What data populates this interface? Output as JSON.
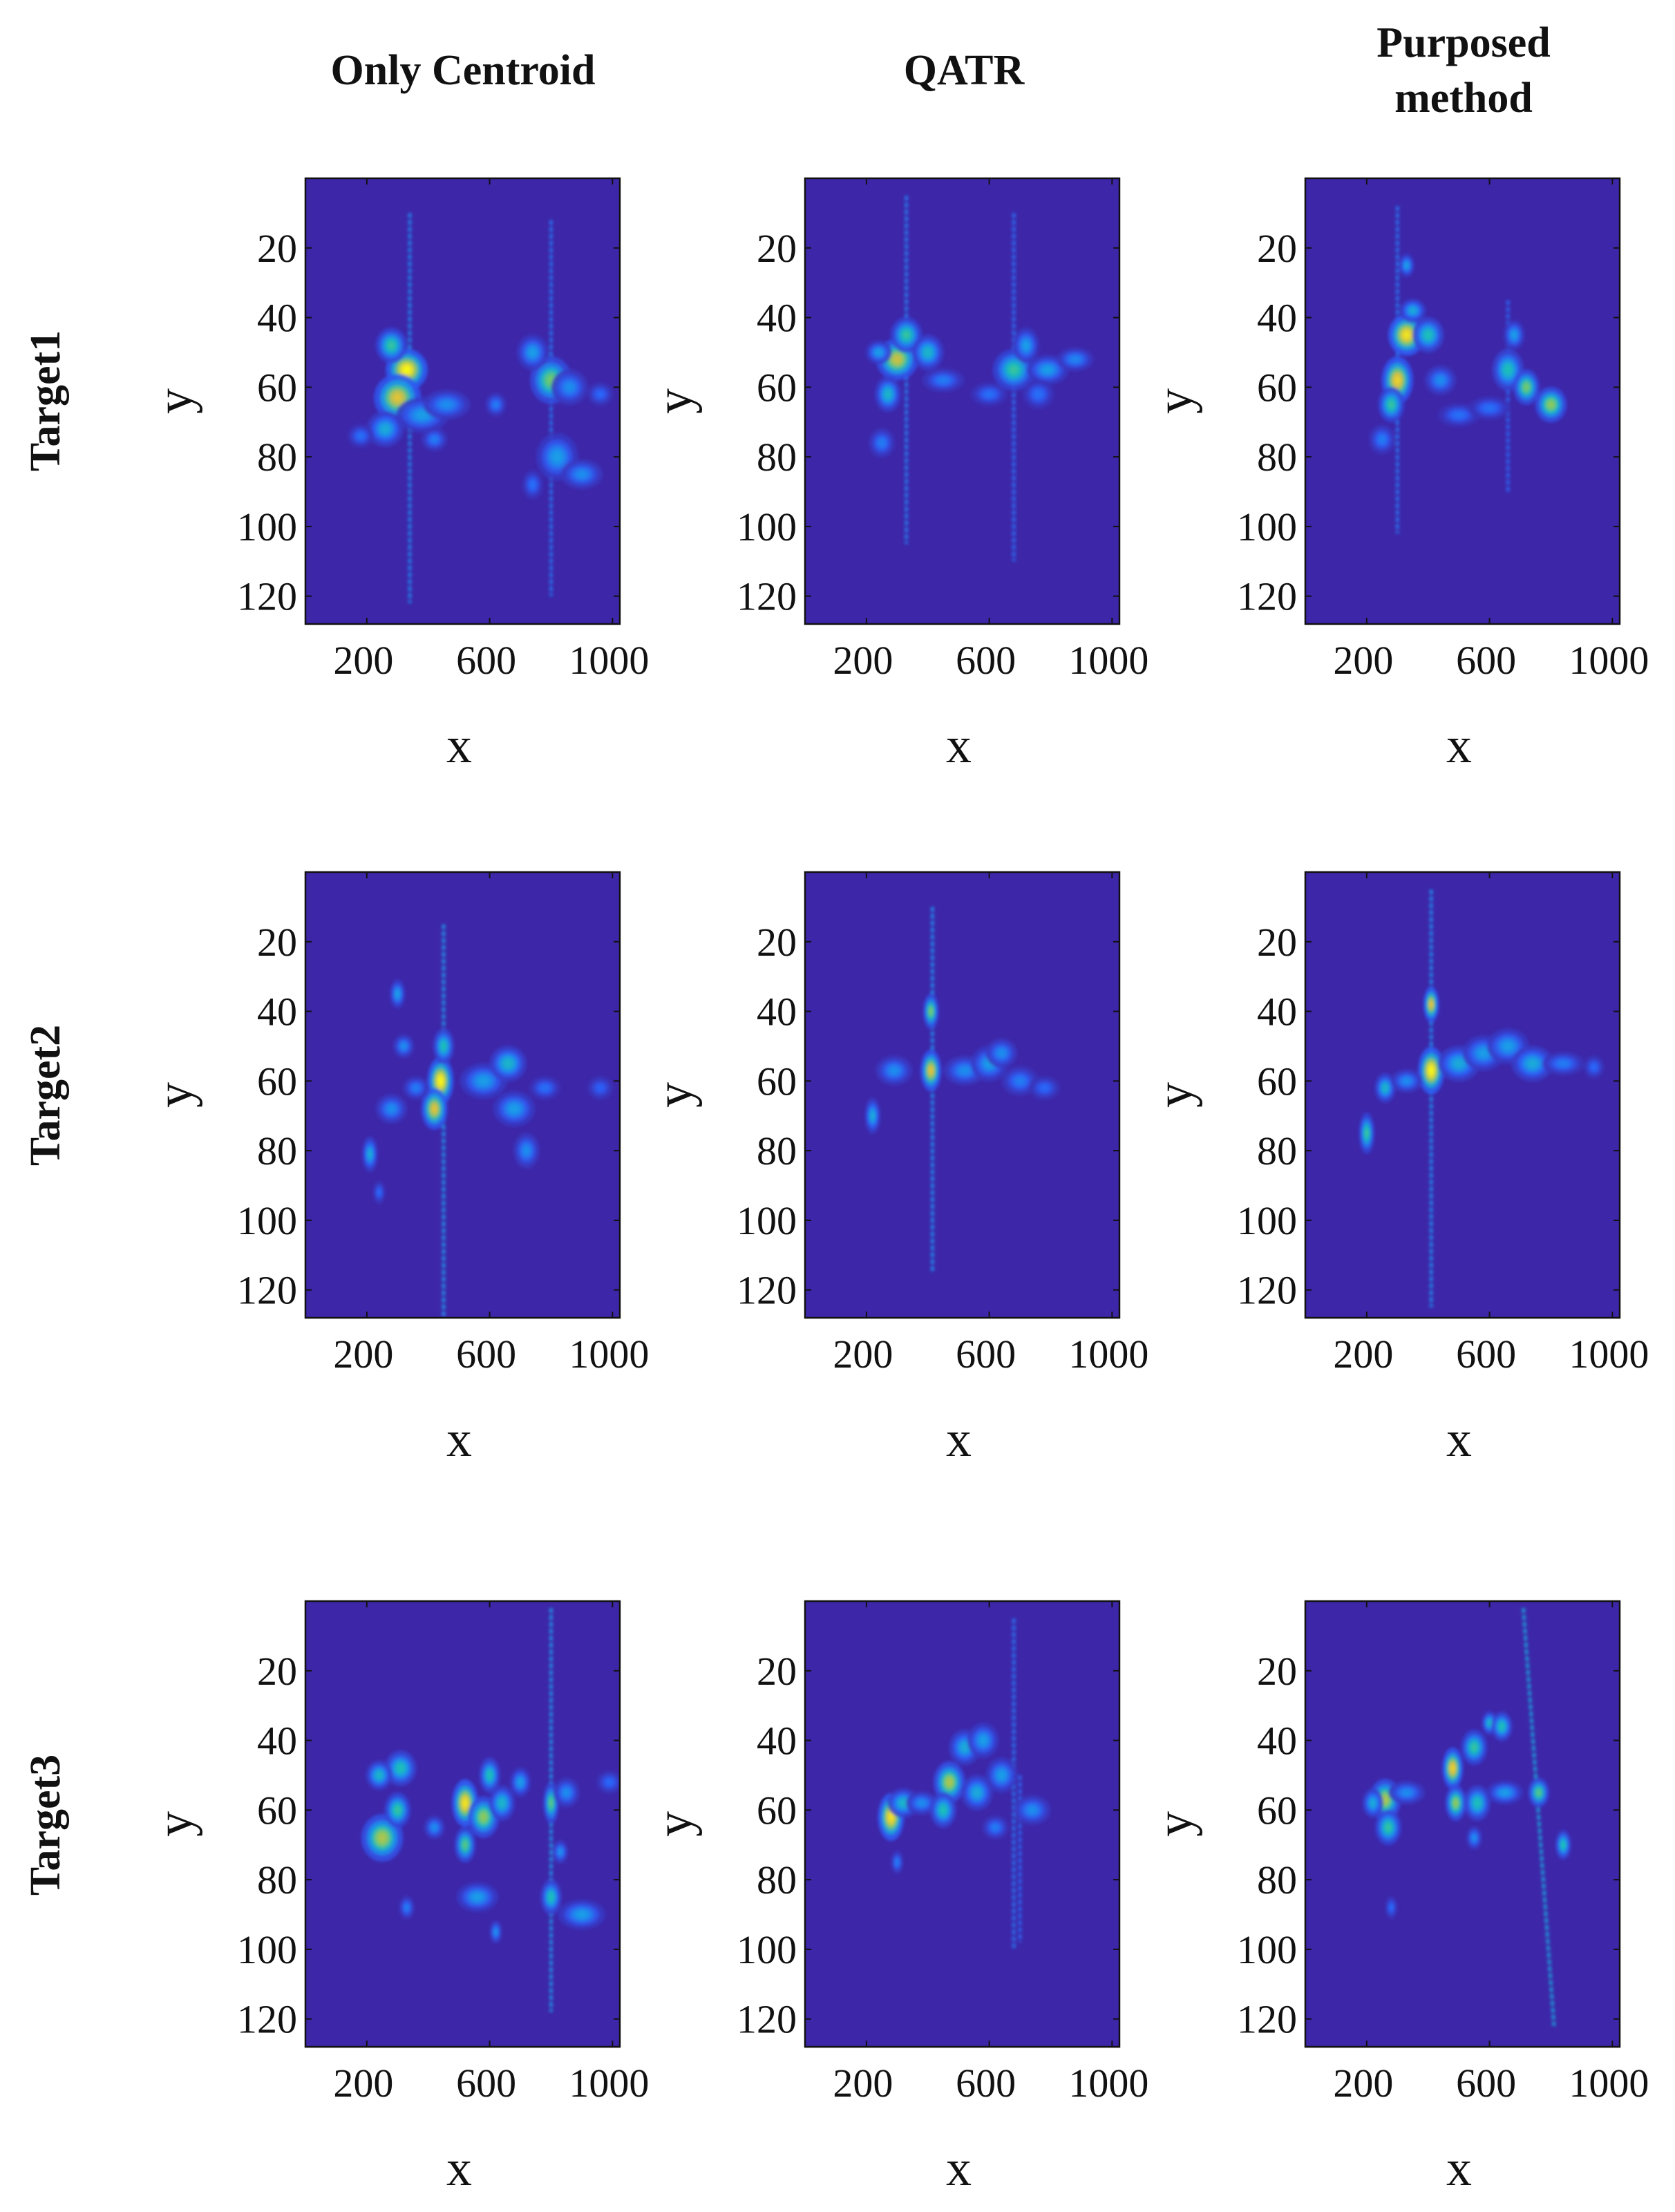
{
  "figure": {
    "column_titles": [
      [
        "Only Centroid"
      ],
      [
        "QATR"
      ],
      [
        "Purposed",
        "method"
      ]
    ],
    "row_titles": [
      "Target1",
      "Target2",
      "Target3"
    ],
    "colormap": {
      "background": "#3D26A8",
      "stops": [
        "#3D26A8",
        "#2E5DF8",
        "#1A9BEA",
        "#1CC0B5",
        "#7FCB60",
        "#E3BD3A",
        "#F9FB15"
      ]
    },
    "frame_color": "#111111"
  },
  "chart_data": [
    {
      "type": "heatmap",
      "target": "Target1",
      "method": "Only Centroid",
      "xlabel": "x",
      "ylabel": "y",
      "xticks": [
        200,
        600,
        1000
      ],
      "yticks": [
        20,
        40,
        60,
        80,
        100,
        120
      ],
      "xlim": [
        0,
        1024
      ],
      "ylim": [
        0,
        128
      ],
      "lines": [
        {
          "x": 340,
          "y0": 10,
          "y1": 122,
          "i": 0.18
        },
        {
          "x": 800,
          "y0": 12,
          "y1": 120,
          "i": 0.14
        }
      ],
      "blobs": [
        [
          330,
          55,
          40,
          3.5,
          1.0
        ],
        [
          300,
          63,
          45,
          4,
          0.85
        ],
        [
          280,
          48,
          30,
          3,
          0.55
        ],
        [
          260,
          72,
          35,
          3,
          0.4
        ],
        [
          380,
          68,
          50,
          3,
          0.35
        ],
        [
          460,
          65,
          45,
          2.5,
          0.3
        ],
        [
          620,
          65,
          20,
          2,
          0.25
        ],
        [
          180,
          74,
          25,
          2,
          0.22
        ],
        [
          420,
          75,
          25,
          2,
          0.25
        ],
        [
          800,
          58,
          40,
          4,
          0.65
        ],
        [
          740,
          50,
          30,
          3,
          0.35
        ],
        [
          860,
          60,
          35,
          3,
          0.3
        ],
        [
          820,
          80,
          40,
          4,
          0.35
        ],
        [
          900,
          85,
          40,
          2.5,
          0.3
        ],
        [
          740,
          88,
          20,
          2.5,
          0.22
        ],
        [
          960,
          62,
          25,
          2,
          0.2
        ]
      ]
    },
    {
      "type": "heatmap",
      "target": "Target1",
      "method": "QATR",
      "xlabel": "x",
      "ylabel": "y",
      "xticks": [
        200,
        600,
        1000
      ],
      "yticks": [
        20,
        40,
        60,
        80,
        100,
        120
      ],
      "xlim": [
        0,
        1024
      ],
      "ylim": [
        0,
        128
      ],
      "lines": [
        {
          "x": 330,
          "y0": 5,
          "y1": 105,
          "i": 0.16
        },
        {
          "x": 680,
          "y0": 10,
          "y1": 110,
          "i": 0.12
        }
      ],
      "blobs": [
        [
          300,
          52,
          40,
          3.5,
          0.8
        ],
        [
          330,
          45,
          30,
          3,
          0.55
        ],
        [
          270,
          62,
          25,
          3,
          0.45
        ],
        [
          400,
          50,
          30,
          3,
          0.45
        ],
        [
          240,
          50,
          25,
          2,
          0.35
        ],
        [
          450,
          58,
          40,
          2,
          0.25
        ],
        [
          600,
          62,
          35,
          2,
          0.22
        ],
        [
          250,
          76,
          25,
          2.5,
          0.25
        ],
        [
          680,
          55,
          40,
          3.5,
          0.55
        ],
        [
          720,
          48,
          25,
          3,
          0.35
        ],
        [
          790,
          55,
          40,
          2.5,
          0.35
        ],
        [
          880,
          52,
          35,
          2,
          0.28
        ],
        [
          760,
          62,
          30,
          2.5,
          0.22
        ]
      ]
    },
    {
      "type": "heatmap",
      "target": "Target1",
      "method": "Purposed method",
      "xlabel": "x",
      "ylabel": "y",
      "xticks": [
        200,
        600,
        1000
      ],
      "yticks": [
        20,
        40,
        60,
        80,
        100,
        120
      ],
      "xlim": [
        0,
        1024
      ],
      "ylim": [
        0,
        128
      ],
      "lines": [
        {
          "x": 300,
          "y0": 8,
          "y1": 102,
          "i": 0.14
        },
        {
          "x": 660,
          "y0": 35,
          "y1": 90,
          "i": 0.1
        }
      ],
      "blobs": [
        [
          330,
          45,
          35,
          3.5,
          0.95
        ],
        [
          300,
          58,
          30,
          4,
          0.9
        ],
        [
          280,
          65,
          25,
          3,
          0.55
        ],
        [
          350,
          38,
          25,
          2,
          0.4
        ],
        [
          330,
          25,
          15,
          2,
          0.35
        ],
        [
          400,
          45,
          30,
          3,
          0.5
        ],
        [
          440,
          58,
          30,
          2.5,
          0.3
        ],
        [
          500,
          68,
          40,
          2,
          0.22
        ],
        [
          250,
          75,
          25,
          2.5,
          0.25
        ],
        [
          660,
          55,
          30,
          3.5,
          0.5
        ],
        [
          720,
          60,
          25,
          3,
          0.65
        ],
        [
          800,
          65,
          30,
          3,
          0.7
        ],
        [
          680,
          45,
          20,
          2.5,
          0.35
        ],
        [
          600,
          66,
          40,
          2,
          0.22
        ]
      ]
    },
    {
      "type": "heatmap",
      "target": "Target2",
      "method": "Only Centroid",
      "xlabel": "x",
      "ylabel": "y",
      "xticks": [
        200,
        600,
        1000
      ],
      "yticks": [
        20,
        40,
        60,
        80,
        100,
        120
      ],
      "xlim": [
        0,
        1024
      ],
      "ylim": [
        0,
        128
      ],
      "lines": [
        {
          "x": 450,
          "y0": 15,
          "y1": 128,
          "i": 0.22
        }
      ],
      "blobs": [
        [
          440,
          60,
          25,
          4,
          1.0
        ],
        [
          420,
          68,
          25,
          3.5,
          0.85
        ],
        [
          450,
          50,
          20,
          3,
          0.5
        ],
        [
          300,
          35,
          15,
          2.5,
          0.35
        ],
        [
          320,
          50,
          20,
          2,
          0.3
        ],
        [
          280,
          68,
          30,
          2.5,
          0.3
        ],
        [
          210,
          81,
          15,
          3,
          0.4
        ],
        [
          580,
          60,
          45,
          3,
          0.35
        ],
        [
          660,
          55,
          35,
          3,
          0.45
        ],
        [
          680,
          68,
          40,
          3,
          0.35
        ],
        [
          720,
          80,
          25,
          3,
          0.3
        ],
        [
          780,
          62,
          30,
          2,
          0.22
        ],
        [
          360,
          62,
          25,
          2,
          0.25
        ],
        [
          240,
          92,
          12,
          2,
          0.2
        ],
        [
          960,
          62,
          25,
          2,
          0.18
        ]
      ]
    },
    {
      "type": "heatmap",
      "target": "Target2",
      "method": "QATR",
      "xlabel": "x",
      "ylabel": "y",
      "xticks": [
        200,
        600,
        1000
      ],
      "yticks": [
        20,
        40,
        60,
        80,
        100,
        120
      ],
      "xlim": [
        0,
        1024
      ],
      "ylim": [
        0,
        128
      ],
      "lines": [
        {
          "x": 415,
          "y0": 10,
          "y1": 115,
          "i": 0.2
        }
      ],
      "blobs": [
        [
          410,
          57,
          20,
          3.5,
          0.85
        ],
        [
          410,
          40,
          15,
          3,
          0.65
        ],
        [
          220,
          70,
          15,
          3,
          0.4
        ],
        [
          290,
          57,
          35,
          2.5,
          0.3
        ],
        [
          520,
          57,
          40,
          2.5,
          0.3
        ],
        [
          600,
          55,
          35,
          3,
          0.35
        ],
        [
          640,
          52,
          30,
          2.5,
          0.3
        ],
        [
          700,
          60,
          35,
          2.5,
          0.25
        ],
        [
          780,
          62,
          30,
          2,
          0.2
        ]
      ]
    },
    {
      "type": "heatmap",
      "target": "Target2",
      "method": "Purposed method",
      "xlabel": "x",
      "ylabel": "y",
      "xticks": [
        200,
        600,
        1000
      ],
      "yticks": [
        20,
        40,
        60,
        80,
        100,
        120
      ],
      "xlim": [
        0,
        1024
      ],
      "ylim": [
        0,
        128
      ],
      "lines": [
        {
          "x": 410,
          "y0": 5,
          "y1": 125,
          "i": 0.2
        }
      ],
      "blobs": [
        [
          410,
          57,
          25,
          4,
          1.0
        ],
        [
          410,
          38,
          15,
          3,
          0.85
        ],
        [
          200,
          75,
          15,
          3.5,
          0.55
        ],
        [
          260,
          62,
          20,
          2.5,
          0.45
        ],
        [
          330,
          60,
          30,
          2,
          0.3
        ],
        [
          500,
          55,
          40,
          3,
          0.4
        ],
        [
          580,
          52,
          40,
          3,
          0.35
        ],
        [
          660,
          50,
          40,
          3,
          0.35
        ],
        [
          740,
          55,
          40,
          3,
          0.4
        ],
        [
          840,
          55,
          40,
          2,
          0.25
        ],
        [
          940,
          56,
          20,
          2,
          0.2
        ]
      ]
    },
    {
      "type": "heatmap",
      "target": "Target3",
      "method": "Only Centroid",
      "xlabel": "x",
      "ylabel": "y",
      "xticks": [
        200,
        600,
        1000
      ],
      "yticks": [
        20,
        40,
        60,
        80,
        100,
        120
      ],
      "xlim": [
        0,
        1024
      ],
      "ylim": [
        0,
        128
      ],
      "lines": [
        {
          "x": 800,
          "y0": 2,
          "y1": 118,
          "i": 0.22
        }
      ],
      "blobs": [
        [
          250,
          68,
          40,
          4,
          0.75
        ],
        [
          300,
          60,
          25,
          3,
          0.55
        ],
        [
          310,
          48,
          30,
          3,
          0.5
        ],
        [
          240,
          50,
          25,
          2.5,
          0.45
        ],
        [
          420,
          65,
          20,
          2,
          0.3
        ],
        [
          520,
          58,
          25,
          4,
          0.95
        ],
        [
          520,
          70,
          20,
          3,
          0.6
        ],
        [
          580,
          62,
          30,
          3.5,
          0.7
        ],
        [
          600,
          50,
          20,
          3,
          0.5
        ],
        [
          640,
          58,
          25,
          3,
          0.45
        ],
        [
          560,
          85,
          40,
          2.5,
          0.35
        ],
        [
          620,
          95,
          12,
          2,
          0.3
        ],
        [
          700,
          52,
          20,
          2.5,
          0.35
        ],
        [
          800,
          58,
          15,
          3.5,
          0.6
        ],
        [
          800,
          85,
          20,
          3,
          0.5
        ],
        [
          850,
          55,
          25,
          2.5,
          0.3
        ],
        [
          900,
          90,
          45,
          2.5,
          0.35
        ],
        [
          830,
          72,
          15,
          2,
          0.3
        ],
        [
          990,
          52,
          25,
          2,
          0.2
        ],
        [
          330,
          88,
          15,
          2,
          0.25
        ]
      ]
    },
    {
      "type": "heatmap",
      "target": "Target3",
      "method": "QATR",
      "xlabel": "x",
      "ylabel": "y",
      "xticks": [
        200,
        600,
        1000
      ],
      "yticks": [
        20,
        40,
        60,
        80,
        100,
        120
      ],
      "xlim": [
        0,
        1024
      ],
      "ylim": [
        0,
        128
      ],
      "lines": [
        {
          "x": 680,
          "y0": 5,
          "y1": 100,
          "i": 0.14
        },
        {
          "x": 700,
          "y0": 50,
          "y1": 98,
          "i": 0.1
        }
      ],
      "blobs": [
        [
          280,
          62,
          25,
          4,
          0.95
        ],
        [
          320,
          58,
          30,
          2.5,
          0.45
        ],
        [
          380,
          58,
          30,
          2,
          0.3
        ],
        [
          470,
          52,
          30,
          3.5,
          0.75
        ],
        [
          450,
          60,
          25,
          3,
          0.5
        ],
        [
          520,
          42,
          30,
          3,
          0.4
        ],
        [
          580,
          40,
          30,
          3,
          0.35
        ],
        [
          560,
          55,
          30,
          3,
          0.4
        ],
        [
          640,
          50,
          30,
          3,
          0.35
        ],
        [
          740,
          60,
          35,
          2.5,
          0.3
        ],
        [
          620,
          65,
          25,
          2,
          0.25
        ],
        [
          300,
          75,
          12,
          2,
          0.25
        ]
      ]
    },
    {
      "type": "heatmap",
      "target": "Target3",
      "method": "Purposed method",
      "xlabel": "x",
      "ylabel": "y",
      "xticks": [
        200,
        600,
        1000
      ],
      "yticks": [
        20,
        40,
        60,
        80,
        100,
        120
      ],
      "xlim": [
        0,
        1024
      ],
      "ylim": [
        0,
        128
      ],
      "lines": [
        {
          "x0": 710,
          "x1": 810,
          "y0": 2,
          "y1": 122,
          "i": 0.28
        }
      ],
      "blobs": [
        [
          260,
          57,
          30,
          3.5,
          0.75
        ],
        [
          220,
          58,
          20,
          2.5,
          0.4
        ],
        [
          270,
          65,
          25,
          3,
          0.55
        ],
        [
          330,
          55,
          35,
          2,
          0.3
        ],
        [
          480,
          48,
          20,
          3.5,
          0.9
        ],
        [
          490,
          58,
          20,
          3,
          0.7
        ],
        [
          550,
          42,
          25,
          3,
          0.55
        ],
        [
          560,
          58,
          25,
          3,
          0.5
        ],
        [
          600,
          35,
          15,
          2,
          0.45
        ],
        [
          640,
          36,
          20,
          2.5,
          0.5
        ],
        [
          650,
          55,
          35,
          2,
          0.35
        ],
        [
          760,
          55,
          20,
          2.5,
          0.6
        ],
        [
          840,
          70,
          15,
          2.5,
          0.5
        ],
        [
          550,
          68,
          15,
          2,
          0.3
        ],
        [
          280,
          88,
          12,
          2,
          0.2
        ]
      ]
    }
  ]
}
